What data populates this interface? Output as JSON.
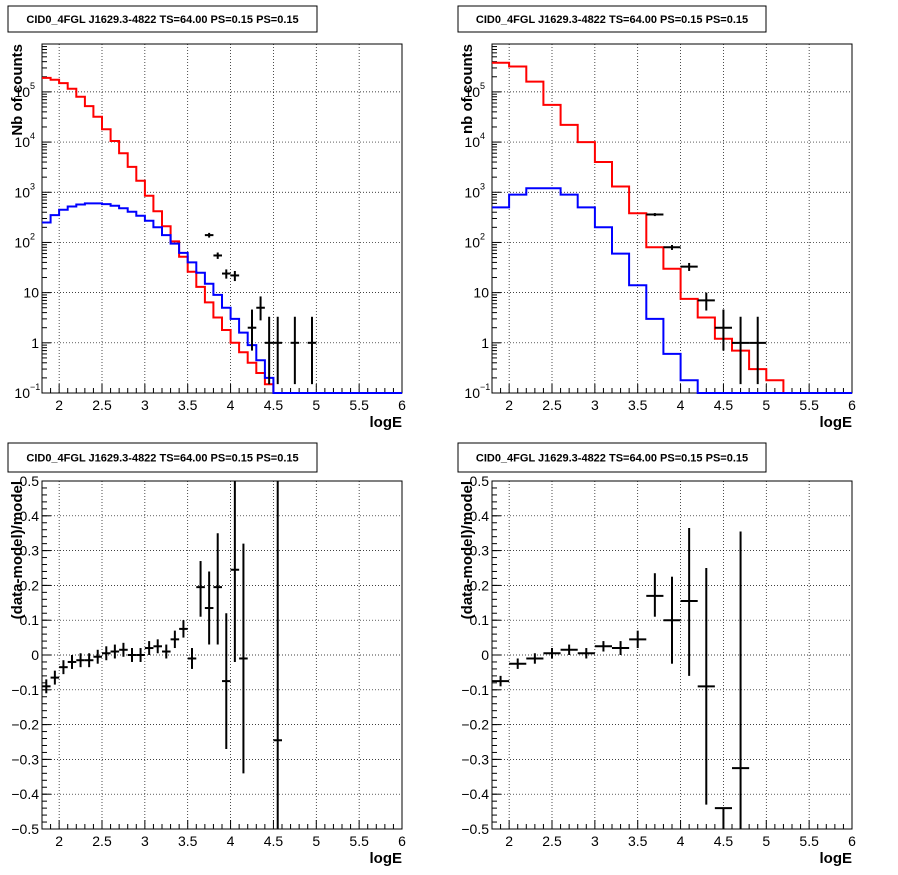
{
  "chart_data": [
    {
      "type": "line",
      "title": "CID0_4FGL J1629.3-4822 TS=64.00 PS=0.15 PS=0.15",
      "xlabel": "logE",
      "ylabel": "Nb of counts",
      "xlim": [
        1.8,
        6.0
      ],
      "ylim": [
        0.1,
        900000
      ],
      "yscale": "log",
      "grid": true,
      "xticks": [
        "2",
        "2.5",
        "3",
        "3.5",
        "4",
        "4.5",
        "5",
        "5.5",
        "6"
      ],
      "yticks": [
        {
          "value": 0.1,
          "base": "10",
          "exp": "−1"
        },
        {
          "value": 1,
          "label": "1"
        },
        {
          "value": 10,
          "label": "10"
        },
        {
          "value": 100,
          "base": "10",
          "exp": "2"
        },
        {
          "value": 1000,
          "base": "10",
          "exp": "3"
        },
        {
          "value": 10000,
          "base": "10",
          "exp": "4"
        },
        {
          "value": 100000,
          "base": "10",
          "exp": "5"
        }
      ],
      "bin_edges": [
        1.8,
        1.9,
        2.0,
        2.1,
        2.2,
        2.3,
        2.4,
        2.5,
        2.6,
        2.7,
        2.8,
        2.9,
        3.0,
        3.1,
        3.2,
        3.3,
        3.4,
        3.5,
        3.6,
        3.7,
        3.8,
        3.9,
        4.0,
        4.1,
        4.2,
        4.3,
        4.4,
        4.5,
        4.6,
        4.7,
        4.8,
        4.9,
        5.0,
        5.1,
        5.2,
        5.3,
        5.4,
        5.5,
        5.6,
        5.7,
        5.8,
        5.9,
        6.0
      ],
      "series": [
        {
          "color": "#ff0000",
          "values": [
            190000,
            175000,
            150000,
            115000,
            80000,
            52000,
            32000,
            18000,
            10500,
            6000,
            3200,
            1700,
            850,
            420,
            210,
            105,
            52,
            26,
            13,
            6.4,
            3.2,
            1.8,
            1.0,
            0.65,
            0.4,
            0.25,
            0.15,
            0.1,
            0.1,
            0.1,
            0.1,
            0.1,
            0.1,
            0.1,
            0.1,
            0.1,
            0.1,
            0.1,
            0.1,
            0.1,
            0.1,
            0.1
          ]
        },
        {
          "color": "#0000ff",
          "values": [
            250,
            350,
            450,
            520,
            570,
            600,
            600,
            580,
            540,
            480,
            410,
            340,
            270,
            200,
            140,
            95,
            62,
            40,
            25,
            15,
            9,
            5,
            3,
            1.6,
            0.9,
            0.45,
            0.2,
            0.1,
            0.1,
            0.1,
            0.1,
            0.1,
            0.1,
            0.1,
            0.1,
            0.1,
            0.1,
            0.1,
            0.1,
            0.1,
            0.1,
            0.1
          ]
        }
      ],
      "points": [
        {
          "x": 3.75,
          "y": 140,
          "xerr": 0.05,
          "ylo": 125,
          "yhi": 155
        },
        {
          "x": 3.85,
          "y": 55,
          "xerr": 0.05,
          "ylo": 47,
          "yhi": 63
        },
        {
          "x": 3.95,
          "y": 24,
          "xerr": 0.05,
          "ylo": 19,
          "yhi": 29
        },
        {
          "x": 4.05,
          "y": 22,
          "xerr": 0.05,
          "ylo": 17,
          "yhi": 27
        },
        {
          "x": 4.25,
          "y": 2,
          "xerr": 0.05,
          "ylo": 0.7,
          "yhi": 4.6
        },
        {
          "x": 4.35,
          "y": 5,
          "xerr": 0.05,
          "ylo": 2.8,
          "yhi": 8.4
        },
        {
          "x": 4.45,
          "y": 1,
          "xerr": 0.05,
          "ylo": 0.15,
          "yhi": 3.3
        },
        {
          "x": 4.55,
          "y": 1,
          "xerr": 0.05,
          "ylo": 0.15,
          "yhi": 3.3
        },
        {
          "x": 4.75,
          "y": 1,
          "xerr": 0.05,
          "ylo": 0.15,
          "yhi": 3.3
        },
        {
          "x": 4.95,
          "y": 1,
          "xerr": 0.05,
          "ylo": 0.15,
          "yhi": 3.3
        }
      ]
    },
    {
      "type": "line",
      "title": "CID0_4FGL J1629.3-4822 TS=64.00 PS=0.15 PS=0.15",
      "xlabel": "logE",
      "ylabel": "nb of counts",
      "xlim": [
        1.8,
        6.0
      ],
      "ylim": [
        0.1,
        900000
      ],
      "yscale": "log",
      "grid": true,
      "xticks": [
        "2",
        "2.5",
        "3",
        "3.5",
        "4",
        "4.5",
        "5",
        "5.5",
        "6"
      ],
      "yticks": [
        {
          "value": 0.1,
          "base": "10",
          "exp": "−1"
        },
        {
          "value": 1,
          "label": "1"
        },
        {
          "value": 10,
          "label": "10"
        },
        {
          "value": 100,
          "base": "10",
          "exp": "2"
        },
        {
          "value": 1000,
          "base": "10",
          "exp": "3"
        },
        {
          "value": 10000,
          "base": "10",
          "exp": "4"
        },
        {
          "value": 100000,
          "base": "10",
          "exp": "5"
        }
      ],
      "bin_edges": [
        1.8,
        2.0,
        2.2,
        2.4,
        2.6,
        2.8,
        3.0,
        3.2,
        3.4,
        3.6,
        3.8,
        4.0,
        4.2,
        4.4,
        4.6,
        4.8,
        5.0,
        5.2,
        5.4,
        5.6,
        5.8,
        6.0
      ],
      "series": [
        {
          "color": "#ff0000",
          "values": [
            380000,
            320000,
            160000,
            55000,
            22000,
            10000,
            4000,
            1300,
            380,
            80,
            30,
            7.5,
            3.2,
            1.2,
            0.7,
            0.3,
            0.18,
            0.1,
            0.1,
            0.1,
            0.1
          ]
        },
        {
          "color": "#0000ff",
          "values": [
            500,
            900,
            1200,
            1200,
            900,
            500,
            200,
            60,
            14,
            3,
            0.6,
            0.18,
            0.1,
            0.1,
            0.1,
            0.1,
            0.1,
            0.1,
            0.1,
            0.1,
            0.1
          ]
        }
      ],
      "points": [
        {
          "x": 3.7,
          "y": 360,
          "xerr": 0.1,
          "ylo": 335,
          "yhi": 385
        },
        {
          "x": 3.9,
          "y": 80,
          "xerr": 0.1,
          "ylo": 71,
          "yhi": 89
        },
        {
          "x": 4.1,
          "y": 33,
          "xerr": 0.1,
          "ylo": 27,
          "yhi": 39
        },
        {
          "x": 4.3,
          "y": 7,
          "xerr": 0.1,
          "ylo": 4.4,
          "yhi": 10
        },
        {
          "x": 4.5,
          "y": 2,
          "xerr": 0.1,
          "ylo": 0.7,
          "yhi": 4.6
        },
        {
          "x": 4.7,
          "y": 1,
          "xerr": 0.1,
          "ylo": 0.15,
          "yhi": 3.3
        },
        {
          "x": 4.9,
          "y": 1,
          "xerr": 0.1,
          "ylo": 0.15,
          "yhi": 3.3
        }
      ]
    },
    {
      "type": "scatter",
      "title": "CID0_4FGL J1629.3-4822 TS=64.00 PS=0.15 PS=0.15",
      "xlabel": "logE",
      "ylabel": "(data-model)/model",
      "xlim": [
        1.8,
        6.0
      ],
      "ylim": [
        -0.5,
        0.5
      ],
      "grid": true,
      "xticks": [
        "2",
        "2.5",
        "3",
        "3.5",
        "4",
        "4.5",
        "5",
        "5.5",
        "6"
      ],
      "yticks": [
        "−0.5",
        "−0.4",
        "−0.3",
        "−0.2",
        "−0.1",
        "0",
        "0.1",
        "0.2",
        "0.3",
        "0.4",
        "0.5"
      ],
      "points": [
        {
          "x": 1.85,
          "y": -0.09,
          "xerr": 0.05,
          "ylo": -0.11,
          "yhi": -0.07
        },
        {
          "x": 1.95,
          "y": -0.065,
          "xerr": 0.05,
          "ylo": -0.085,
          "yhi": -0.045
        },
        {
          "x": 2.05,
          "y": -0.035,
          "xerr": 0.05,
          "ylo": -0.055,
          "yhi": -0.015
        },
        {
          "x": 2.15,
          "y": -0.02,
          "xerr": 0.05,
          "ylo": -0.04,
          "yhi": 0.0
        },
        {
          "x": 2.25,
          "y": -0.015,
          "xerr": 0.05,
          "ylo": -0.035,
          "yhi": 0.005
        },
        {
          "x": 2.35,
          "y": -0.015,
          "xerr": 0.05,
          "ylo": -0.035,
          "yhi": 0.005
        },
        {
          "x": 2.45,
          "y": -0.005,
          "xerr": 0.05,
          "ylo": -0.025,
          "yhi": 0.015
        },
        {
          "x": 2.55,
          "y": 0.005,
          "xerr": 0.05,
          "ylo": -0.015,
          "yhi": 0.025
        },
        {
          "x": 2.65,
          "y": 0.01,
          "xerr": 0.05,
          "ylo": -0.01,
          "yhi": 0.03
        },
        {
          "x": 2.75,
          "y": 0.015,
          "xerr": 0.05,
          "ylo": -0.005,
          "yhi": 0.035
        },
        {
          "x": 2.85,
          "y": 0.0,
          "xerr": 0.05,
          "ylo": -0.02,
          "yhi": 0.02
        },
        {
          "x": 2.95,
          "y": 0.0,
          "xerr": 0.05,
          "ylo": -0.02,
          "yhi": 0.02
        },
        {
          "x": 3.05,
          "y": 0.02,
          "xerr": 0.05,
          "ylo": 0.0,
          "yhi": 0.04
        },
        {
          "x": 3.15,
          "y": 0.025,
          "xerr": 0.05,
          "ylo": 0.005,
          "yhi": 0.045
        },
        {
          "x": 3.25,
          "y": 0.01,
          "xerr": 0.05,
          "ylo": -0.01,
          "yhi": 0.03
        },
        {
          "x": 3.35,
          "y": 0.045,
          "xerr": 0.05,
          "ylo": 0.02,
          "yhi": 0.07
        },
        {
          "x": 3.45,
          "y": 0.075,
          "xerr": 0.05,
          "ylo": 0.05,
          "yhi": 0.1
        },
        {
          "x": 3.55,
          "y": -0.01,
          "xerr": 0.05,
          "ylo": -0.04,
          "yhi": 0.02
        },
        {
          "x": 3.65,
          "y": 0.195,
          "xerr": 0.05,
          "ylo": 0.11,
          "yhi": 0.27
        },
        {
          "x": 3.75,
          "y": 0.135,
          "xerr": 0.05,
          "ylo": 0.03,
          "yhi": 0.24
        },
        {
          "x": 3.85,
          "y": 0.195,
          "xerr": 0.05,
          "ylo": 0.03,
          "yhi": 0.35
        },
        {
          "x": 3.95,
          "y": -0.075,
          "xerr": 0.05,
          "ylo": -0.27,
          "yhi": 0.12
        },
        {
          "x": 4.05,
          "y": 0.245,
          "xerr": 0.05,
          "ylo": -0.02,
          "yhi": 0.5
        },
        {
          "x": 4.15,
          "y": -0.01,
          "xerr": 0.05,
          "ylo": -0.34,
          "yhi": 0.32
        },
        {
          "x": 4.55,
          "y": -0.245,
          "xerr": 0.05,
          "ylo": -0.5,
          "yhi": 0.5
        }
      ]
    },
    {
      "type": "scatter",
      "title": "CID0_4FGL J1629.3-4822 TS=64.00 PS=0.15 PS=0.15",
      "xlabel": "logE",
      "ylabel": "(data-model)/model",
      "xlim": [
        1.8,
        6.0
      ],
      "ylim": [
        -0.5,
        0.5
      ],
      "grid": true,
      "xticks": [
        "2",
        "2.5",
        "3",
        "3.5",
        "4",
        "4.5",
        "5",
        "5.5",
        "6"
      ],
      "yticks": [
        "−0.5",
        "−0.4",
        "−0.3",
        "−0.2",
        "−0.1",
        "0",
        "0.1",
        "0.2",
        "0.3",
        "0.4",
        "0.5"
      ],
      "points": [
        {
          "x": 1.9,
          "y": -0.075,
          "xerr": 0.1,
          "ylo": -0.09,
          "yhi": -0.06
        },
        {
          "x": 2.1,
          "y": -0.025,
          "xerr": 0.1,
          "ylo": -0.04,
          "yhi": -0.01
        },
        {
          "x": 2.3,
          "y": -0.01,
          "xerr": 0.1,
          "ylo": -0.025,
          "yhi": 0.005
        },
        {
          "x": 2.5,
          "y": 0.005,
          "xerr": 0.1,
          "ylo": -0.01,
          "yhi": 0.02
        },
        {
          "x": 2.7,
          "y": 0.015,
          "xerr": 0.1,
          "ylo": 0.0,
          "yhi": 0.03
        },
        {
          "x": 2.9,
          "y": 0.005,
          "xerr": 0.1,
          "ylo": -0.01,
          "yhi": 0.02
        },
        {
          "x": 3.1,
          "y": 0.025,
          "xerr": 0.1,
          "ylo": 0.01,
          "yhi": 0.04
        },
        {
          "x": 3.3,
          "y": 0.02,
          "xerr": 0.1,
          "ylo": 0.0,
          "yhi": 0.04
        },
        {
          "x": 3.5,
          "y": 0.045,
          "xerr": 0.1,
          "ylo": 0.02,
          "yhi": 0.07
        },
        {
          "x": 3.7,
          "y": 0.17,
          "xerr": 0.1,
          "ylo": 0.11,
          "yhi": 0.235
        },
        {
          "x": 3.9,
          "y": 0.1,
          "xerr": 0.1,
          "ylo": -0.025,
          "yhi": 0.225
        },
        {
          "x": 4.1,
          "y": 0.155,
          "xerr": 0.1,
          "ylo": -0.06,
          "yhi": 0.365
        },
        {
          "x": 4.3,
          "y": -0.09,
          "xerr": 0.1,
          "ylo": -0.43,
          "yhi": 0.25
        },
        {
          "x": 4.5,
          "y": -0.44,
          "xerr": 0.1,
          "ylo": -0.5,
          "yhi": -0.44
        },
        {
          "x": 4.7,
          "y": -0.325,
          "xerr": 0.1,
          "ylo": -0.5,
          "yhi": 0.355
        }
      ]
    }
  ]
}
